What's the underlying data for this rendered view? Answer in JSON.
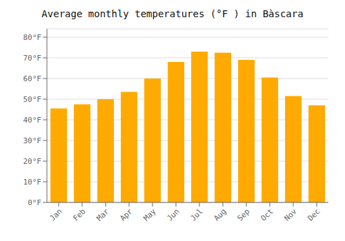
{
  "chart_data": {
    "type": "bar",
    "title": "Average monthly temperatures (°F ) in Bàscara",
    "categories": [
      "Jan",
      "Feb",
      "Mar",
      "Apr",
      "May",
      "Jun",
      "Jul",
      "Aug",
      "Sep",
      "Oct",
      "Nov",
      "Dec"
    ],
    "values": [
      45.5,
      47.5,
      50.0,
      53.5,
      60.0,
      68.0,
      73.0,
      72.5,
      69.0,
      60.5,
      51.5,
      47.0
    ],
    "color": "#FFAA00",
    "ylim": [
      0,
      84
    ],
    "yticks": [
      {
        "value": 0,
        "label": "0°F"
      },
      {
        "value": 10,
        "label": "10°F"
      },
      {
        "value": 20,
        "label": "20°F"
      },
      {
        "value": 30,
        "label": "30°F"
      },
      {
        "value": 40,
        "label": "40°F"
      },
      {
        "value": 50,
        "label": "50°F"
      },
      {
        "value": 60,
        "label": "60°F"
      },
      {
        "value": 70,
        "label": "70°F"
      },
      {
        "value": 80,
        "label": "80°F"
      }
    ],
    "grid": true
  }
}
